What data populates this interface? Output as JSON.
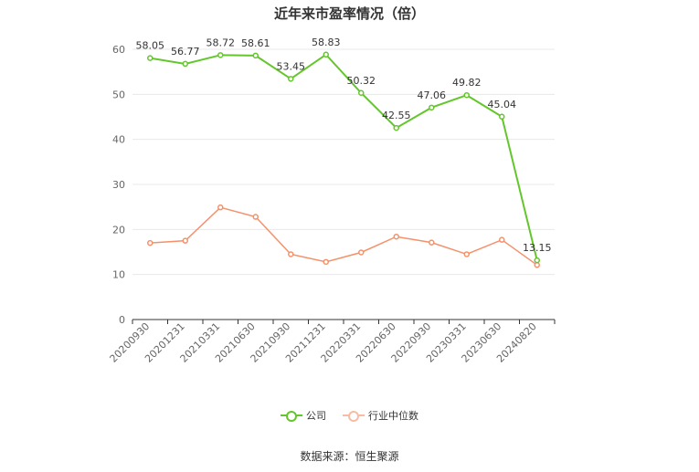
{
  "title": "近年来市盈率情况（倍）",
  "source": "数据来源：恒生聚源",
  "colors": {
    "company": "#63c72c",
    "industry": "#f5916a"
  },
  "chart_data": {
    "type": "line",
    "categories": [
      "20200930",
      "20201231",
      "20210331",
      "20210630",
      "20210930",
      "20211231",
      "20220331",
      "20220630",
      "20220930",
      "20230331",
      "20230630",
      "20240820"
    ],
    "series": [
      {
        "name": "公司",
        "values": [
          58.05,
          56.77,
          58.72,
          58.61,
          53.45,
          58.83,
          50.32,
          42.55,
          47.06,
          49.82,
          45.04,
          13.15
        ],
        "labels": [
          "58.05",
          "56.77",
          "58.72",
          "58.61",
          "53.45",
          "58.83",
          "50.32",
          "42.55",
          "47.06",
          "49.82",
          "45.04",
          "13.15"
        ]
      },
      {
        "name": "行业中位数",
        "values": [
          17.0,
          17.5,
          24.9,
          22.8,
          14.5,
          12.8,
          14.9,
          18.4,
          17.1,
          14.5,
          17.7,
          12.1
        ]
      }
    ],
    "yticks": [
      "0",
      "10",
      "20",
      "30",
      "40",
      "50",
      "60"
    ],
    "ylim": [
      0,
      60
    ],
    "grid": true,
    "legend": "bottom"
  }
}
